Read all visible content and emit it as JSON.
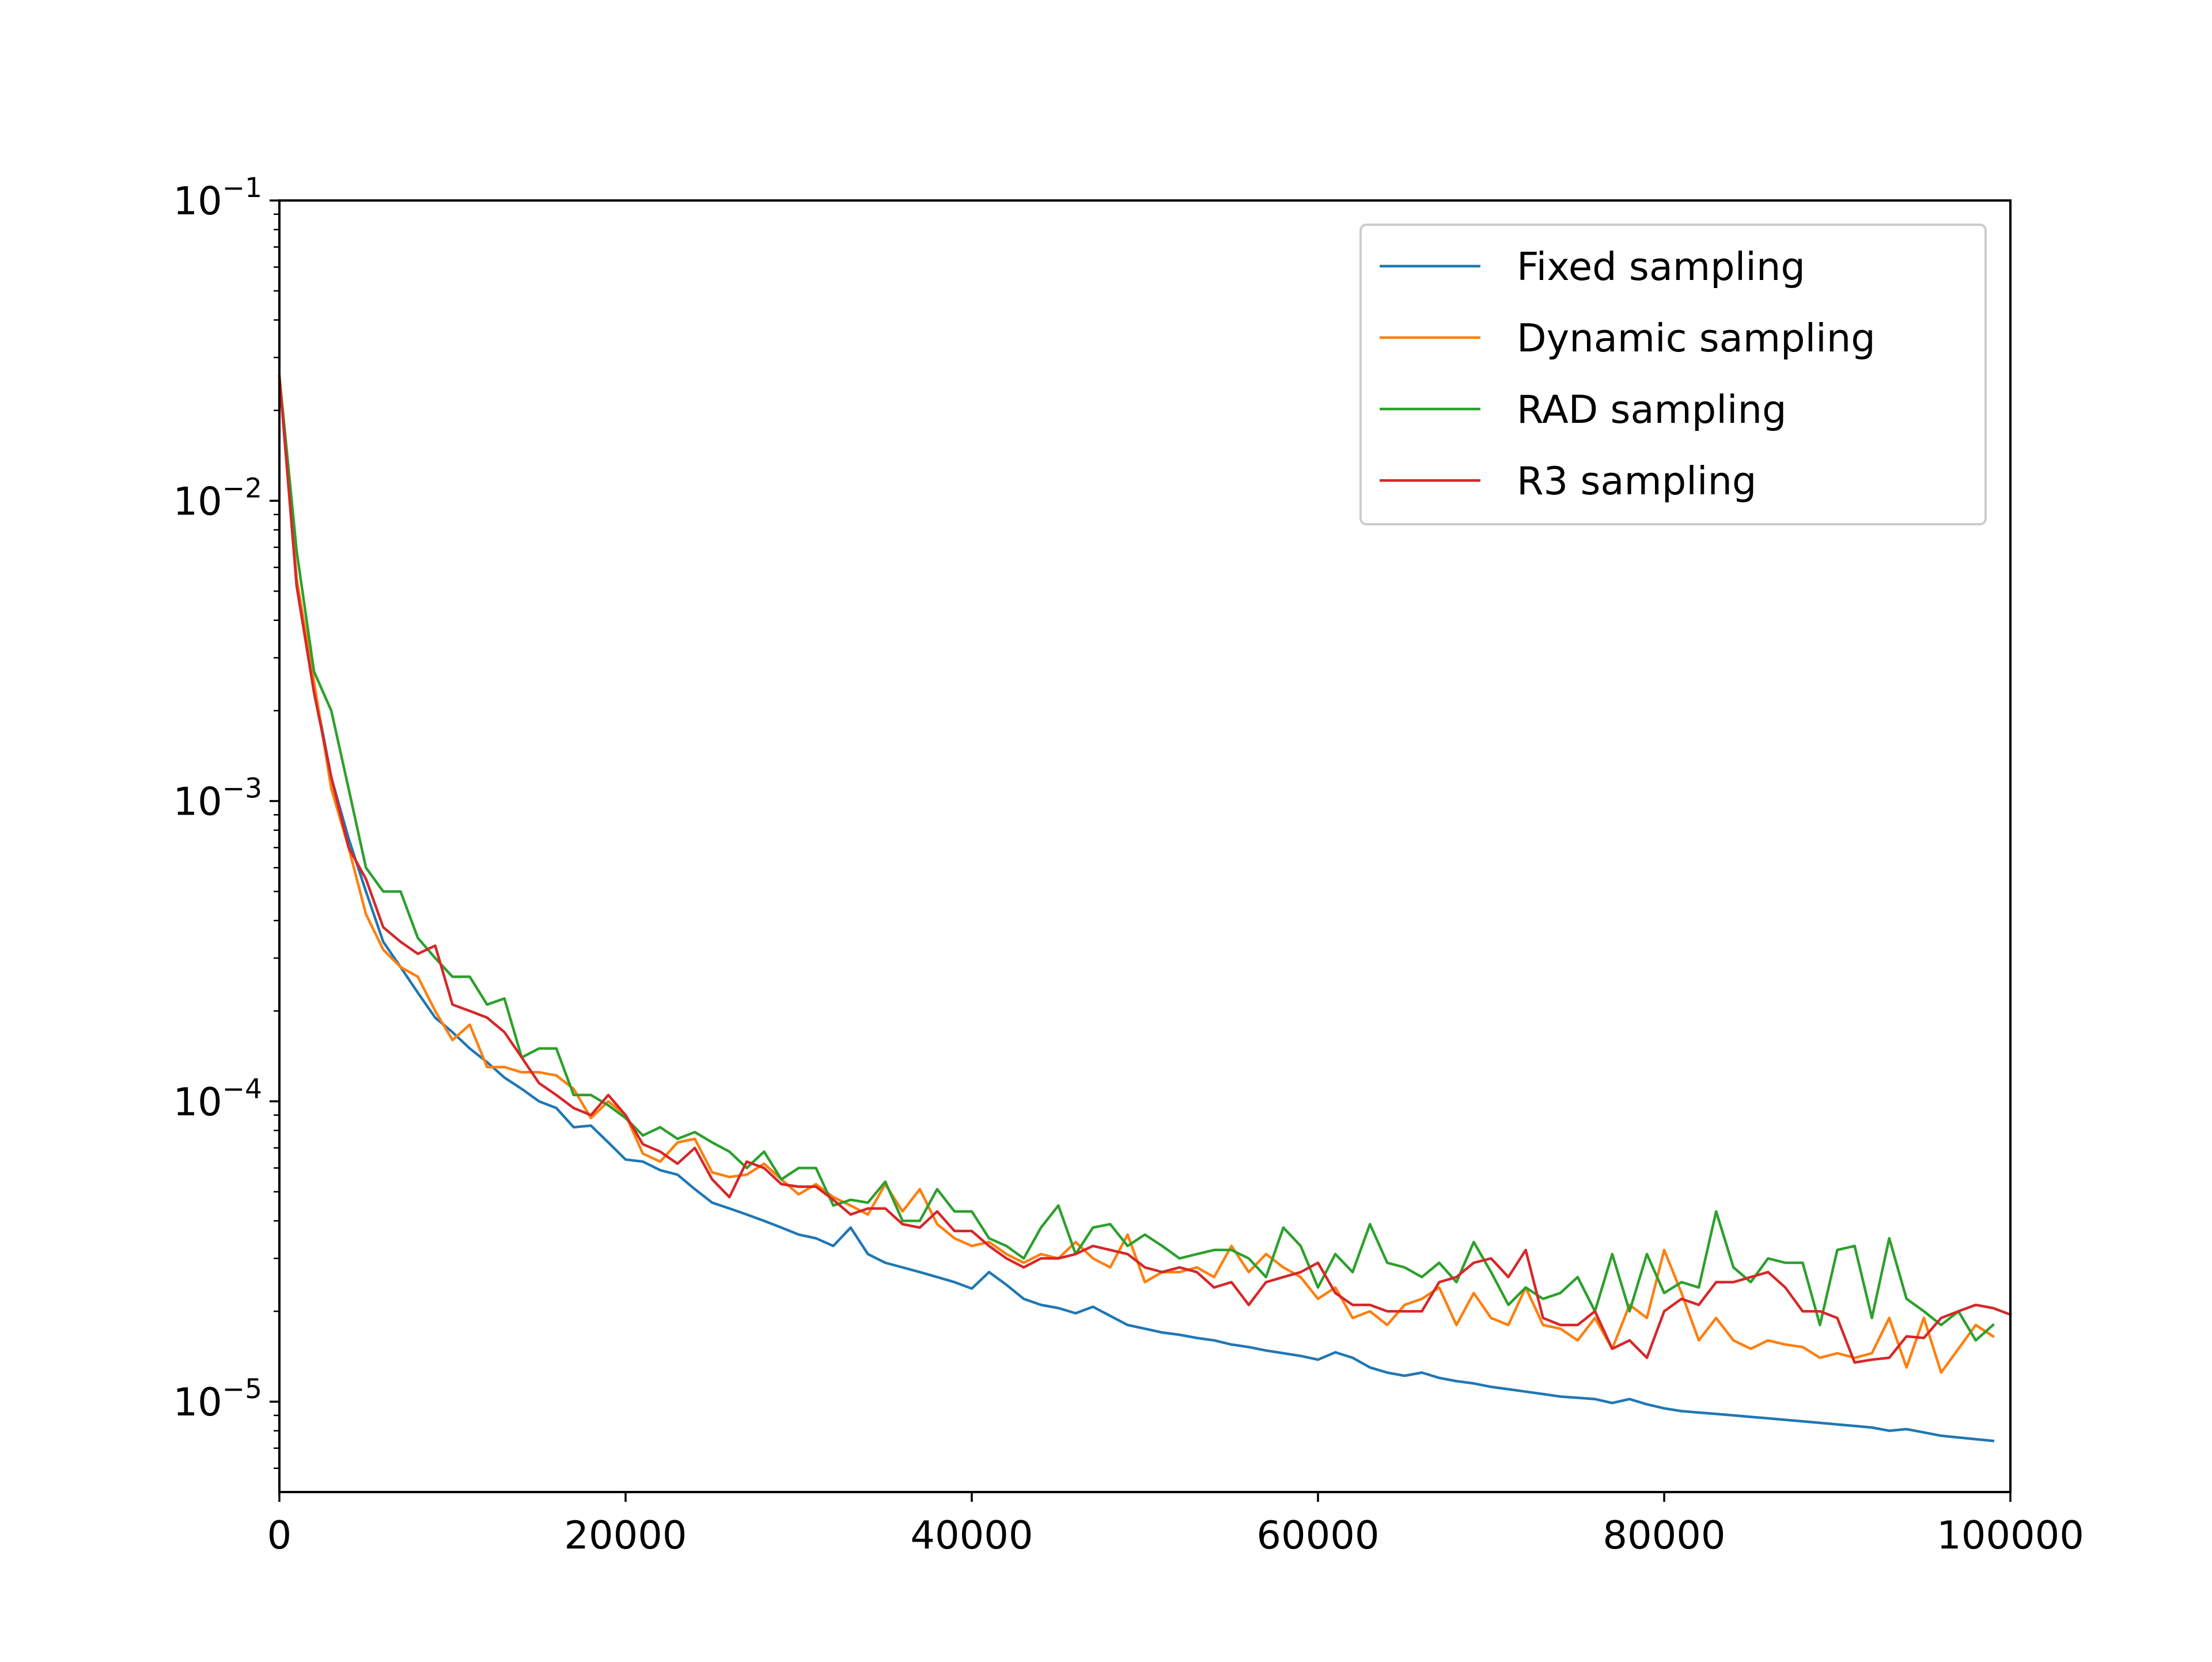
{
  "chart_data": {
    "type": "line",
    "title": "",
    "xlabel": "",
    "ylabel": "",
    "xlim": [
      0,
      100000
    ],
    "ylim": [
      5e-06,
      0.1
    ],
    "yscale": "log",
    "grid": false,
    "legend_position": "top-right",
    "x_ticks": [
      0,
      20000,
      40000,
      60000,
      80000,
      100000
    ],
    "x_tick_labels": [
      "0",
      "20000",
      "40000",
      "60000",
      "80000",
      "100000"
    ],
    "y_ticks": [
      0.1,
      0.01,
      0.001,
      0.0001,
      1e-05
    ],
    "y_tick_base": [
      "10",
      "10",
      "10",
      "10",
      "10"
    ],
    "y_tick_exp": [
      "−1",
      "−2",
      "−3",
      "−4",
      "−5"
    ],
    "x_step": 1000,
    "series": [
      {
        "name": "Fixed sampling",
        "color": "#1f77b4",
        "values": [
          0.026,
          0.0055,
          0.0024,
          0.0012,
          0.00075,
          0.0005,
          0.00034,
          0.00028,
          0.00023,
          0.00019,
          0.00017,
          0.00015,
          0.000135,
          0.00012,
          0.00011,
          0.0001,
          9.5e-05,
          8.2e-05,
          8.3e-05,
          7.3e-05,
          6.4e-05,
          6.3e-05,
          5.9e-05,
          5.7e-05,
          5.1e-05,
          4.6e-05,
          4.4e-05,
          4.2e-05,
          4e-05,
          3.8e-05,
          3.6e-05,
          3.5e-05,
          3.3e-05,
          3.8e-05,
          3.1e-05,
          2.9e-05,
          2.8e-05,
          2.7e-05,
          2.6e-05,
          2.5e-05,
          2.38e-05,
          2.7e-05,
          2.45e-05,
          2.2e-05,
          2.1e-05,
          2.05e-05,
          1.97e-05,
          2.07e-05,
          1.93e-05,
          1.8e-05,
          1.75e-05,
          1.7e-05,
          1.67e-05,
          1.63e-05,
          1.6e-05,
          1.55e-05,
          1.52e-05,
          1.48e-05,
          1.45e-05,
          1.42e-05,
          1.38e-05,
          1.46e-05,
          1.4e-05,
          1.3e-05,
          1.25e-05,
          1.22e-05,
          1.25e-05,
          1.2e-05,
          1.17e-05,
          1.15e-05,
          1.12e-05,
          1.1e-05,
          1.08e-05,
          1.06e-05,
          1.04e-05,
          1.03e-05,
          1.02e-05,
          9.9e-06,
          1.02e-05,
          9.8e-06,
          9.5e-06,
          9.3e-06,
          9.2e-06,
          9.1e-06,
          9e-06,
          8.9e-06,
          8.8e-06,
          8.7e-06,
          8.6e-06,
          8.5e-06,
          8.4e-06,
          8.3e-06,
          8.2e-06,
          8e-06,
          8.1e-06,
          7.9e-06,
          7.7e-06,
          7.6e-06,
          7.5e-06,
          7.4e-06
        ]
      },
      {
        "name": "Dynamic sampling",
        "color": "#ff7f0e",
        "values": [
          0.026,
          0.0055,
          0.0025,
          0.0011,
          0.0007,
          0.00042,
          0.00032,
          0.00028,
          0.00026,
          0.0002,
          0.00016,
          0.00018,
          0.00013,
          0.00013,
          0.000125,
          0.000125,
          0.000122,
          0.00011,
          8.8e-05,
          0.0001,
          9e-05,
          6.7e-05,
          6.3e-05,
          7.3e-05,
          7.5e-05,
          5.8e-05,
          5.6e-05,
          5.7e-05,
          6.2e-05,
          5.5e-05,
          4.9e-05,
          5.3e-05,
          4.8e-05,
          4.5e-05,
          4.2e-05,
          5.3e-05,
          4.3e-05,
          5.1e-05,
          3.9e-05,
          3.5e-05,
          3.3e-05,
          3.4e-05,
          3.1e-05,
          2.9e-05,
          3.1e-05,
          3e-05,
          3.4e-05,
          3e-05,
          2.8e-05,
          3.6e-05,
          2.5e-05,
          2.7e-05,
          2.7e-05,
          2.8e-05,
          2.6e-05,
          3.3e-05,
          2.7e-05,
          3.1e-05,
          2.8e-05,
          2.6e-05,
          2.2e-05,
          2.4e-05,
          1.9e-05,
          2e-05,
          1.8e-05,
          2.1e-05,
          2.2e-05,
          2.4e-05,
          1.8e-05,
          2.3e-05,
          1.9e-05,
          1.8e-05,
          2.4e-05,
          1.8e-05,
          1.75e-05,
          1.6e-05,
          1.9e-05,
          1.5e-05,
          2.1e-05,
          1.9e-05,
          3.2e-05,
          2.3e-05,
          1.6e-05,
          1.9e-05,
          1.6e-05,
          1.5e-05,
          1.6e-05,
          1.55e-05,
          1.52e-05,
          1.4e-05,
          1.45e-05,
          1.4e-05,
          1.45e-05,
          1.9e-05,
          1.3e-05,
          1.9e-05,
          1.25e-05,
          1.5e-05,
          1.8e-05,
          1.65e-05
        ]
      },
      {
        "name": "RAD sampling",
        "color": "#2ca02c",
        "values": [
          0.026,
          0.0068,
          0.0027,
          0.002,
          0.0011,
          0.0006,
          0.0005,
          0.0005,
          0.00035,
          0.0003,
          0.00026,
          0.00026,
          0.00021,
          0.00022,
          0.00014,
          0.00015,
          0.00015,
          0.000105,
          0.000105,
          9.7e-05,
          8.8e-05,
          7.7e-05,
          8.2e-05,
          7.5e-05,
          7.9e-05,
          7.3e-05,
          6.8e-05,
          6e-05,
          6.8e-05,
          5.5e-05,
          6e-05,
          6e-05,
          4.5e-05,
          4.7e-05,
          4.6e-05,
          5.4e-05,
          4e-05,
          4e-05,
          5.1e-05,
          4.3e-05,
          4.3e-05,
          3.5e-05,
          3.3e-05,
          3e-05,
          3.8e-05,
          4.5e-05,
          3.1e-05,
          3.8e-05,
          3.9e-05,
          3.3e-05,
          3.6e-05,
          3.3e-05,
          3e-05,
          3.1e-05,
          3.2e-05,
          3.2e-05,
          3e-05,
          2.6e-05,
          3.8e-05,
          3.3e-05,
          2.4e-05,
          3.1e-05,
          2.7e-05,
          3.9e-05,
          2.9e-05,
          2.8e-05,
          2.6e-05,
          2.9e-05,
          2.5e-05,
          3.4e-05,
          2.7e-05,
          2.1e-05,
          2.4e-05,
          2.2e-05,
          2.3e-05,
          2.6e-05,
          2e-05,
          3.1e-05,
          2e-05,
          3.1e-05,
          2.3e-05,
          2.5e-05,
          2.4e-05,
          4.3e-05,
          2.8e-05,
          2.5e-05,
          3e-05,
          2.9e-05,
          2.9e-05,
          1.8e-05,
          3.2e-05,
          3.3e-05,
          1.9e-05,
          3.5e-05,
          2.2e-05,
          2e-05,
          1.8e-05,
          2e-05,
          1.6e-05,
          1.8e-05
        ]
      },
      {
        "name": "R3 sampling",
        "color": "#d62728",
        "values": [
          0.026,
          0.0052,
          0.0023,
          0.0012,
          0.0007,
          0.00055,
          0.00038,
          0.00034,
          0.00031,
          0.00033,
          0.00021,
          0.0002,
          0.00019,
          0.00017,
          0.00014,
          0.000115,
          0.000105,
          9.5e-05,
          9e-05,
          0.000105,
          9e-05,
          7.2e-05,
          6.8e-05,
          6.2e-05,
          7e-05,
          5.5e-05,
          4.8e-05,
          6.3e-05,
          6e-05,
          5.3e-05,
          5.2e-05,
          5.2e-05,
          4.7e-05,
          4.2e-05,
          4.4e-05,
          4.4e-05,
          3.9e-05,
          3.8e-05,
          4.3e-05,
          3.7e-05,
          3.7e-05,
          3.3e-05,
          3e-05,
          2.8e-05,
          3e-05,
          3e-05,
          3.1e-05,
          3.3e-05,
          3.2e-05,
          3.1e-05,
          2.8e-05,
          2.7e-05,
          2.8e-05,
          2.7e-05,
          2.4e-05,
          2.5e-05,
          2.1e-05,
          2.5e-05,
          2.6e-05,
          2.7e-05,
          2.9e-05,
          2.3e-05,
          2.1e-05,
          2.1e-05,
          2e-05,
          2e-05,
          2e-05,
          2.5e-05,
          2.6e-05,
          2.9e-05,
          3e-05,
          2.6e-05,
          3.2e-05,
          1.9e-05,
          1.8e-05,
          1.8e-05,
          2e-05,
          1.5e-05,
          1.6e-05,
          1.4e-05,
          2e-05,
          2.2e-05,
          2.1e-05,
          2.5e-05,
          2.5e-05,
          2.6e-05,
          2.7e-05,
          2.4e-05,
          2e-05,
          2e-05,
          1.9e-05,
          1.35e-05,
          1.38e-05,
          1.4e-05,
          1.65e-05,
          1.63e-05,
          1.9e-05,
          2e-05,
          2.1e-05,
          2.05e-05,
          1.95e-05
        ]
      }
    ]
  }
}
